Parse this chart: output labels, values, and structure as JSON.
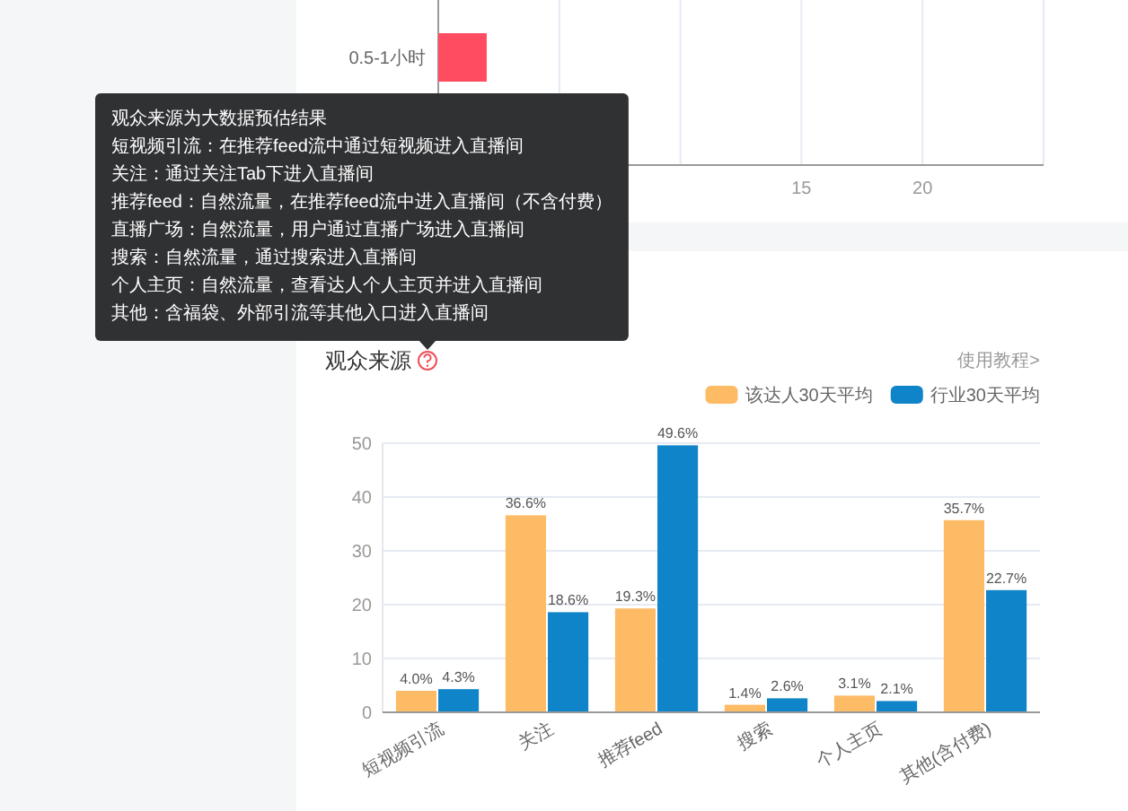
{
  "chart_data": [
    {
      "type": "bar",
      "orientation": "horizontal",
      "categories": [
        "0.5-1小时"
      ],
      "values": [
        2
      ],
      "color": "#ff4c61",
      "xlim": [
        0,
        25
      ],
      "xticks": [
        {
          "value": 0,
          "label": null
        },
        {
          "value": 5,
          "label": null
        },
        {
          "value": 10,
          "label": null
        },
        15,
        20,
        {
          "value": 25,
          "label": null
        }
      ],
      "grid": "x"
    },
    {
      "type": "bar",
      "title": "观众来源",
      "categories": [
        "短视频引流",
        "关注",
        "推荐feed",
        "搜索",
        "个人主页",
        "其他(含付费)"
      ],
      "series": [
        {
          "name": "该达人30天平均",
          "color": "#fdbb66",
          "values": [
            4.0,
            36.6,
            19.3,
            1.4,
            3.1,
            35.7
          ],
          "value_labels": [
            "4.0%",
            "36.6%",
            "19.3%",
            "1.4%",
            "3.1%",
            "35.7%"
          ]
        },
        {
          "name": "行业30天平均",
          "color": "#0f84c8",
          "values": [
            4.3,
            18.6,
            49.6,
            2.6,
            2.1,
            22.7
          ],
          "value_labels": [
            "4.3%",
            "18.6%",
            "49.6%",
            "2.6%",
            "2.1%",
            "22.7%"
          ]
        }
      ],
      "ylim": [
        0,
        50
      ],
      "yticks": [
        0,
        10,
        20,
        30,
        40,
        50
      ],
      "grid": "y",
      "legend": "top right",
      "annotations": [
        "观众来源为大数据预估结果",
        "短视频引流：在推荐feed流中通过短视频进入直播间",
        "关注：通过关注Tab下进入直播间",
        "推荐feed：自然流量，在推荐feed流中进入直播间（不含付费）",
        "直播广场：自然流量，用户通过直播广场进入直播间",
        "搜索：自然流量，通过搜索进入直播间",
        "个人主页：自然流量，查看达人个人主页并进入直播间",
        "其他：含福袋、外部引流等其他入口进入直播间",
        "使用教程>"
      ]
    }
  ]
}
